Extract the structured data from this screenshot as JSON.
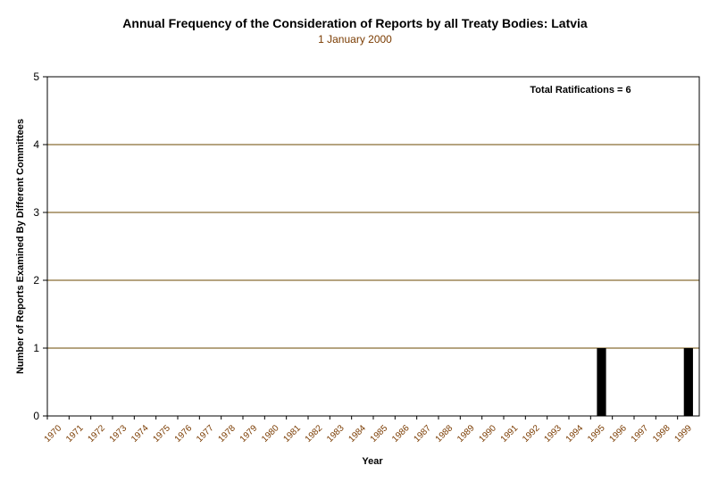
{
  "chart_data": {
    "type": "bar",
    "title": "Annual Frequency of the Consideration of Reports by all Treaty Bodies: Latvia",
    "subtitle": "1 January 2000",
    "xlabel": "Year",
    "ylabel": "Number of Reports Examined By Different Committees",
    "ylim": [
      0,
      5
    ],
    "yticks": [
      "0",
      "1",
      "2",
      "3",
      "4",
      "5"
    ],
    "grid": true,
    "annotation": "Total Ratifications = 6",
    "categories": [
      "1970",
      "1971",
      "1972",
      "1973",
      "1974",
      "1975",
      "1976",
      "1977",
      "1978",
      "1979",
      "1980",
      "1981",
      "1982",
      "1983",
      "1984",
      "1985",
      "1986",
      "1987",
      "1988",
      "1989",
      "1990",
      "1991",
      "1992",
      "1993",
      "1994",
      "1995",
      "1996",
      "1997",
      "1998",
      "1999"
    ],
    "values": [
      0,
      0,
      0,
      0,
      0,
      0,
      0,
      0,
      0,
      0,
      0,
      0,
      0,
      0,
      0,
      0,
      0,
      0,
      0,
      0,
      0,
      0,
      0,
      0,
      0,
      1,
      0,
      0,
      0,
      1
    ],
    "colors": {
      "bar": "#000000",
      "grid": "#6b4a00",
      "axis_text": "#7a3b00"
    }
  }
}
